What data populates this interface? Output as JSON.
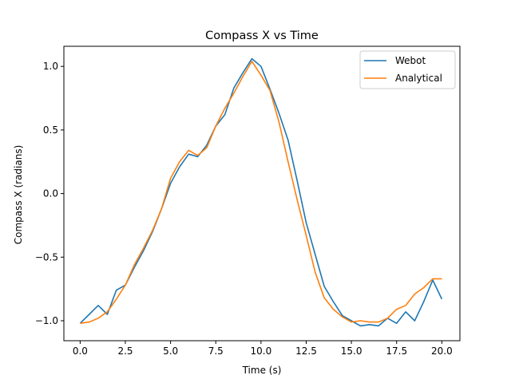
{
  "chart_data": {
    "type": "line",
    "title": "Compass X vs Time",
    "xlabel": "Time (s)",
    "ylabel": "Compass X (radians)",
    "xlim": [
      -0.9,
      21.0
    ],
    "ylim": [
      -1.157,
      1.158
    ],
    "xticks": [
      0.0,
      2.5,
      5.0,
      7.5,
      10.0,
      12.5,
      15.0,
      17.5,
      20.0
    ],
    "xtick_labels": [
      "0.0",
      "2.5",
      "5.0",
      "7.5",
      "10.0",
      "12.5",
      "15.0",
      "17.5",
      "20.0"
    ],
    "yticks": [
      -1.0,
      -0.5,
      0.0,
      0.5,
      1.0
    ],
    "ytick_labels": [
      "−1.0",
      "−0.5",
      "0.0",
      "0.5",
      "1.0"
    ],
    "grid": false,
    "legend_position": "top-right",
    "x": [
      0.0,
      0.5,
      1.0,
      1.5,
      2.0,
      2.5,
      3.0,
      3.5,
      4.0,
      4.5,
      5.0,
      5.5,
      6.0,
      6.5,
      7.0,
      7.5,
      8.0,
      8.5,
      9.0,
      9.5,
      10.0,
      10.5,
      11.0,
      11.5,
      12.0,
      12.5,
      13.0,
      13.5,
      14.0,
      14.5,
      15.0,
      15.5,
      16.0,
      16.5,
      17.0,
      17.5,
      18.0,
      18.5,
      19.0,
      19.5,
      20.0
    ],
    "series": [
      {
        "name": "Webot",
        "color": "#1f77b4",
        "values": [
          -1.02,
          -0.95,
          -0.88,
          -0.95,
          -0.76,
          -0.72,
          -0.58,
          -0.45,
          -0.3,
          -0.12,
          0.08,
          0.21,
          0.31,
          0.29,
          0.38,
          0.53,
          0.62,
          0.83,
          0.95,
          1.06,
          1.0,
          0.82,
          0.63,
          0.42,
          0.1,
          -0.23,
          -0.48,
          -0.73,
          -0.85,
          -0.96,
          -1.0,
          -1.04,
          -1.03,
          -1.04,
          -0.98,
          -1.02,
          -0.93,
          -1.0,
          -0.85,
          -0.68,
          -0.83
        ]
      },
      {
        "name": "Analytical",
        "color": "#ff7f0e",
        "values": [
          -1.02,
          -1.01,
          -0.98,
          -0.93,
          -0.83,
          -0.72,
          -0.56,
          -0.43,
          -0.29,
          -0.12,
          0.12,
          0.25,
          0.34,
          0.3,
          0.36,
          0.53,
          0.67,
          0.79,
          0.92,
          1.04,
          0.93,
          0.81,
          0.56,
          0.25,
          -0.05,
          -0.33,
          -0.62,
          -0.82,
          -0.91,
          -0.97,
          -1.01,
          -1.0,
          -1.01,
          -1.01,
          -0.98,
          -0.91,
          -0.88,
          -0.79,
          -0.74,
          -0.67,
          -0.67
        ]
      }
    ]
  }
}
